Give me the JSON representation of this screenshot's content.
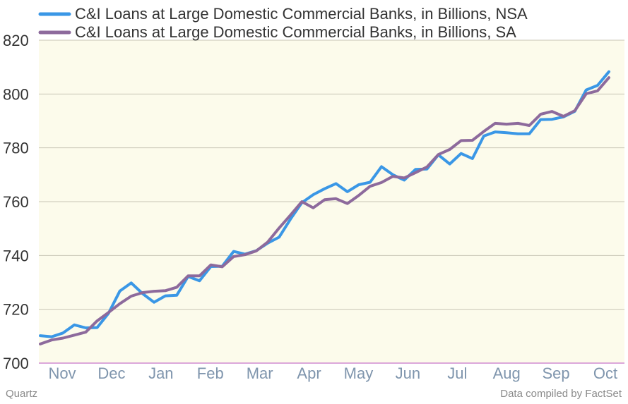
{
  "chart_data": {
    "type": "line",
    "title": "",
    "xlabel": "",
    "ylabel": "",
    "ylim": [
      700,
      820
    ],
    "yticks": [
      700,
      720,
      740,
      760,
      780,
      800,
      820
    ],
    "x_labels": [
      "Nov",
      "Dec",
      "Jan",
      "Feb",
      "Mar",
      "Apr",
      "May",
      "Jun",
      "Jul",
      "Aug",
      "Sep",
      "Oct"
    ],
    "grid": true,
    "legend_position": "top-left",
    "colors": {
      "plot_background": "#fcfbeb",
      "grid": "#c8c6b6",
      "axis": "#d08bd0"
    },
    "series": [
      {
        "name": "C&I Loans at Large Domestic Commercial Banks, in Billions, NSA",
        "color": "#3a97e6",
        "values": [
          710.2,
          709.8,
          711.2,
          714.2,
          713.1,
          713.2,
          718.5,
          726.8,
          729.8,
          725.8,
          722.6,
          725.0,
          725.2,
          732.2,
          730.6,
          735.9,
          736.0,
          741.5,
          740.5,
          741.8,
          744.6,
          746.8,
          753.5,
          759.6,
          762.6,
          764.8,
          766.7,
          763.7,
          766.3,
          767.2,
          773.0,
          770.0,
          768.0,
          772.0,
          772.1,
          777.4,
          774.0,
          777.9,
          776.0,
          784.4,
          785.9,
          785.6,
          785.2,
          785.2,
          790.5,
          790.6,
          791.5,
          793.6,
          801.5,
          803.2,
          808.3
        ]
      },
      {
        "name": "C&I Loans at Large Domestic Commercial Banks, in Billions, SA",
        "color": "#8d6a9c",
        "values": [
          707.1,
          708.6,
          709.3,
          710.4,
          711.5,
          715.7,
          718.8,
          722.1,
          724.9,
          726.2,
          726.7,
          726.9,
          728.2,
          732.4,
          732.4,
          736.5,
          735.8,
          739.6,
          740.3,
          741.7,
          745.0,
          750.2,
          755.0,
          760.0,
          757.7,
          760.7,
          761.1,
          759.3,
          762.3,
          765.7,
          767.1,
          769.4,
          768.8,
          770.8,
          772.9,
          777.5,
          779.4,
          782.7,
          782.8,
          786.1,
          789.1,
          788.8,
          789.1,
          788.3,
          792.5,
          793.5,
          791.7,
          793.8,
          800.1,
          801.2,
          806.1
        ]
      }
    ]
  },
  "footer": {
    "source_left": "Quartz",
    "source_right": "Data compiled by FactSet"
  }
}
